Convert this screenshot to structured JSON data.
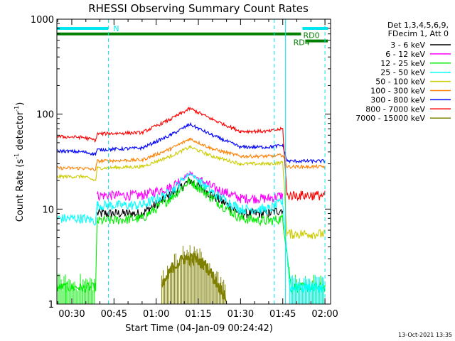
{
  "chart_data": {
    "type": "line",
    "title": "RHESSI Observing Summary Count Rates",
    "xlabel": "Start Time (04-Jan-09 00:24:42)",
    "ylabel_parts": [
      "Count Rate (s",
      "-1",
      " detector",
      "-1",
      ")"
    ],
    "yscale": "log",
    "xlim": [
      "00:24:42",
      "02:02:00"
    ],
    "ylim": [
      1,
      1000
    ],
    "x_ticks": [
      "00:30",
      "00:45",
      "01:00",
      "01:15",
      "01:30",
      "01:45",
      "02:00"
    ],
    "y_ticks": [
      "1",
      "10",
      "100",
      "1000"
    ],
    "legend_header": [
      "Det 1,3,4,5,6,9,",
      "FDecim 1, Att 0"
    ],
    "legend_placement": "right",
    "series": [
      {
        "name": "3 - 6 keV",
        "color": "#000000",
        "x": [
          "00:24:42",
          "00:38:30",
          "00:39:00",
          "00:55:00",
          "01:05:00",
          "01:12:00",
          "01:20:00",
          "01:30:00",
          "01:40:00",
          "01:45:00"
        ],
        "y": [
          null,
          null,
          9,
          9,
          14,
          20,
          14,
          9,
          9,
          10
        ]
      },
      {
        "name": "6 - 12 keV",
        "color": "#ff00ff",
        "x": [
          "00:24:42",
          "00:38:30",
          "00:39:00",
          "00:55:00",
          "01:05:00",
          "01:12:00",
          "01:20:00",
          "01:30:00",
          "01:40:00",
          "01:45:00"
        ],
        "y": [
          null,
          null,
          14,
          14,
          17,
          24,
          17,
          13,
          13,
          14
        ]
      },
      {
        "name": "12 - 25 keV",
        "color": "#00ee00",
        "x": [
          "00:24:42",
          "00:28:00",
          "00:34:00",
          "00:38:30",
          "00:39:00",
          "00:55:00",
          "01:05:00",
          "01:12:00",
          "01:20:00",
          "01:30:00",
          "01:40:00",
          "01:45:00",
          "01:48:00",
          "01:56:00",
          "02:00:00"
        ],
        "y": [
          1.5,
          1.5,
          1.5,
          1.5,
          7.5,
          8,
          13,
          20,
          13,
          8,
          7.5,
          8,
          1.5,
          1.5,
          1.5
        ]
      },
      {
        "name": "25 - 50 keV",
        "color": "#00ffff",
        "x": [
          "00:24:42",
          "00:34:00",
          "00:38:30",
          "00:39:00",
          "00:55:00",
          "01:05:00",
          "01:12:00",
          "01:20:00",
          "01:30:00",
          "01:40:00",
          "01:45:00",
          "01:47:30",
          "01:56:00",
          "02:00:00"
        ],
        "y": [
          8,
          8,
          7.5,
          11,
          11,
          15,
          24,
          15,
          10,
          10,
          12,
          1.5,
          1.5,
          1.5
        ]
      },
      {
        "name": "50 - 100 keV",
        "color": "#cccc00",
        "x": [
          "00:24:42",
          "00:34:00",
          "00:38:30",
          "00:39:00",
          "00:55:00",
          "01:05:00",
          "01:12:00",
          "01:20:00",
          "01:30:00",
          "01:40:00",
          "01:45:00",
          "01:46:30",
          "01:54:00",
          "02:00:00"
        ],
        "y": [
          22,
          22,
          20,
          27,
          28,
          36,
          45,
          36,
          30,
          30,
          31,
          5.5,
          5.5,
          5.5
        ]
      },
      {
        "name": "100 - 300 keV",
        "color": "#ff8000",
        "x": [
          "00:24:42",
          "00:34:00",
          "00:38:30",
          "00:39:00",
          "00:55:00",
          "01:05:00",
          "01:12:00",
          "01:20:00",
          "01:30:00",
          "01:40:00",
          "01:45:00",
          "01:46:30",
          "01:54:00",
          "02:00:00"
        ],
        "y": [
          27,
          27,
          26,
          32,
          33,
          43,
          55,
          43,
          36,
          36,
          37,
          28,
          28,
          28
        ]
      },
      {
        "name": "300 - 800 keV",
        "color": "#0000ff",
        "x": [
          "00:24:42",
          "00:34:00",
          "00:38:30",
          "00:39:00",
          "00:55:00",
          "01:05:00",
          "01:12:00",
          "01:20:00",
          "01:30:00",
          "01:40:00",
          "01:45:00",
          "01:46:30",
          "01:54:00",
          "02:00:00"
        ],
        "y": [
          41,
          40,
          38,
          42,
          44,
          60,
          78,
          60,
          45,
          45,
          47,
          32,
          32,
          32
        ]
      },
      {
        "name": "800 - 7000 keV",
        "color": "#ff0000",
        "x": [
          "00:24:42",
          "00:34:00",
          "00:38:30",
          "00:39:00",
          "00:55:00",
          "01:05:00",
          "01:12:00",
          "01:20:00",
          "01:30:00",
          "01:40:00",
          "01:45:00",
          "01:46:30",
          "01:54:00",
          "02:00:00"
        ],
        "y": [
          58,
          57,
          53,
          62,
          64,
          88,
          115,
          88,
          66,
          66,
          70,
          14,
          14,
          14
        ]
      },
      {
        "name": "7000 - 15000 keV",
        "color": "#808000",
        "x": [
          "01:02:00",
          "01:06:00",
          "01:10:00",
          "01:14:00",
          "01:18:00",
          "01:22:00",
          "01:25:00"
        ],
        "y": [
          1.5,
          2.5,
          3,
          3,
          2.5,
          1.6,
          1.2
        ]
      }
    ],
    "annotations": [
      {
        "label": "N",
        "color": "#00e5ee",
        "y": 800,
        "x_start": "00:24:42",
        "x_end": "00:43:00",
        "label_x": "00:44:00"
      },
      {
        "label": "",
        "color": "#00e5ee",
        "y": 800,
        "x_start": "01:52:00",
        "x_end": "02:01:00"
      },
      {
        "label": "RD0",
        "color": "#008000",
        "y": 700,
        "x_start": "00:24:42",
        "x_end": "01:51:30",
        "label_x": "01:51:30"
      },
      {
        "label": "RD4",
        "color": "#008000",
        "y": 590,
        "x_start": "01:53:00",
        "x_end": "02:01:00",
        "label_x": "01:48:00"
      }
    ],
    "vlines_dashed": [
      "00:43:00",
      "01:42:00",
      "02:00:00"
    ],
    "vlines_solid": [
      "01:46:00"
    ],
    "timestamp": "13-Oct-2021 13:35",
    "grid": false
  }
}
